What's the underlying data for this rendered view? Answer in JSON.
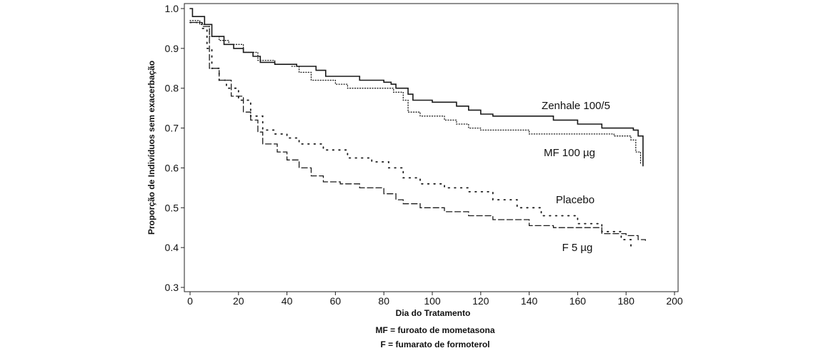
{
  "chart_data": {
    "type": "line",
    "step": true,
    "xlabel": "Dia do Tratamento",
    "ylabel": "Proporção de Indivíduos sem exacerbação",
    "xlim": [
      0,
      200
    ],
    "ylim": [
      0.3,
      1.0
    ],
    "xticks": [
      "0",
      "20",
      "40",
      "60",
      "80",
      "100",
      "120",
      "140",
      "160",
      "180",
      "200"
    ],
    "yticks": [
      "0.3",
      "0.4",
      "0.5",
      "0.6",
      "0.7",
      "0.8",
      "0.9",
      "1.0"
    ],
    "grid": false,
    "series": [
      {
        "name": "Zenhale 100/5",
        "line_style": "solid",
        "points": [
          [
            0,
            1.0
          ],
          [
            1,
            0.98
          ],
          [
            6,
            0.96
          ],
          [
            9,
            0.93
          ],
          [
            14,
            0.91
          ],
          [
            18,
            0.9
          ],
          [
            22,
            0.89
          ],
          [
            26,
            0.88
          ],
          [
            29,
            0.865
          ],
          [
            35,
            0.86
          ],
          [
            44,
            0.855
          ],
          [
            52,
            0.845
          ],
          [
            56,
            0.83
          ],
          [
            70,
            0.82
          ],
          [
            80,
            0.815
          ],
          [
            83,
            0.81
          ],
          [
            85,
            0.8
          ],
          [
            90,
            0.785
          ],
          [
            92,
            0.77
          ],
          [
            100,
            0.765
          ],
          [
            110,
            0.755
          ],
          [
            115,
            0.745
          ],
          [
            120,
            0.735
          ],
          [
            125,
            0.73
          ],
          [
            150,
            0.72
          ],
          [
            160,
            0.71
          ],
          [
            170,
            0.7
          ],
          [
            183,
            0.695
          ],
          [
            185,
            0.68
          ],
          [
            187,
            0.66
          ],
          [
            187,
            0.605
          ]
        ]
      },
      {
        "name": "MF 100 µg",
        "line_style": "dotted",
        "points": [
          [
            0,
            0.97
          ],
          [
            4,
            0.96
          ],
          [
            8,
            0.93
          ],
          [
            12,
            0.92
          ],
          [
            16,
            0.91
          ],
          [
            22,
            0.89
          ],
          [
            28,
            0.87
          ],
          [
            35,
            0.86
          ],
          [
            42,
            0.855
          ],
          [
            45,
            0.84
          ],
          [
            50,
            0.82
          ],
          [
            60,
            0.81
          ],
          [
            65,
            0.8
          ],
          [
            80,
            0.8
          ],
          [
            84,
            0.79
          ],
          [
            88,
            0.77
          ],
          [
            90,
            0.74
          ],
          [
            95,
            0.73
          ],
          [
            105,
            0.72
          ],
          [
            110,
            0.71
          ],
          [
            115,
            0.7
          ],
          [
            120,
            0.695
          ],
          [
            140,
            0.685
          ],
          [
            175,
            0.68
          ],
          [
            182,
            0.67
          ],
          [
            184,
            0.64
          ],
          [
            186,
            0.61
          ]
        ]
      },
      {
        "name": "Placebo",
        "line_style": "dotted-sparse",
        "points": [
          [
            0,
            0.965
          ],
          [
            5,
            0.95
          ],
          [
            7,
            0.9
          ],
          [
            9,
            0.85
          ],
          [
            12,
            0.82
          ],
          [
            15,
            0.8
          ],
          [
            20,
            0.77
          ],
          [
            25,
            0.73
          ],
          [
            30,
            0.695
          ],
          [
            35,
            0.685
          ],
          [
            40,
            0.675
          ],
          [
            45,
            0.66
          ],
          [
            55,
            0.645
          ],
          [
            65,
            0.625
          ],
          [
            75,
            0.615
          ],
          [
            82,
            0.6
          ],
          [
            88,
            0.575
          ],
          [
            95,
            0.56
          ],
          [
            105,
            0.55
          ],
          [
            115,
            0.54
          ],
          [
            125,
            0.52
          ],
          [
            135,
            0.5
          ],
          [
            145,
            0.48
          ],
          [
            160,
            0.46
          ],
          [
            170,
            0.44
          ],
          [
            178,
            0.42
          ],
          [
            182,
            0.4
          ]
        ]
      },
      {
        "name": "F 5 µg",
        "line_style": "dashed",
        "points": [
          [
            0,
            0.965
          ],
          [
            5,
            0.955
          ],
          [
            8,
            0.85
          ],
          [
            12,
            0.82
          ],
          [
            17,
            0.78
          ],
          [
            22,
            0.74
          ],
          [
            25,
            0.72
          ],
          [
            28,
            0.69
          ],
          [
            30,
            0.66
          ],
          [
            36,
            0.64
          ],
          [
            40,
            0.62
          ],
          [
            45,
            0.6
          ],
          [
            50,
            0.58
          ],
          [
            55,
            0.565
          ],
          [
            62,
            0.56
          ],
          [
            70,
            0.55
          ],
          [
            80,
            0.535
          ],
          [
            85,
            0.52
          ],
          [
            88,
            0.51
          ],
          [
            95,
            0.5
          ],
          [
            105,
            0.49
          ],
          [
            115,
            0.48
          ],
          [
            125,
            0.47
          ],
          [
            140,
            0.455
          ],
          [
            150,
            0.45
          ],
          [
            170,
            0.435
          ],
          [
            180,
            0.43
          ],
          [
            185,
            0.42
          ],
          [
            188,
            0.418
          ]
        ]
      }
    ],
    "annotations": [
      {
        "series": "Zenhale 100/5",
        "text": "Zenhale 100/5"
      },
      {
        "series": "MF 100 µg",
        "text": "MF 100 µg"
      },
      {
        "series": "Placebo",
        "text": "Placebo"
      },
      {
        "series": "F 5 µg",
        "text": "F 5 µg"
      }
    ]
  },
  "footnotes": [
    "MF = furoato de mometasona",
    "F = fumarato de formoterol"
  ]
}
